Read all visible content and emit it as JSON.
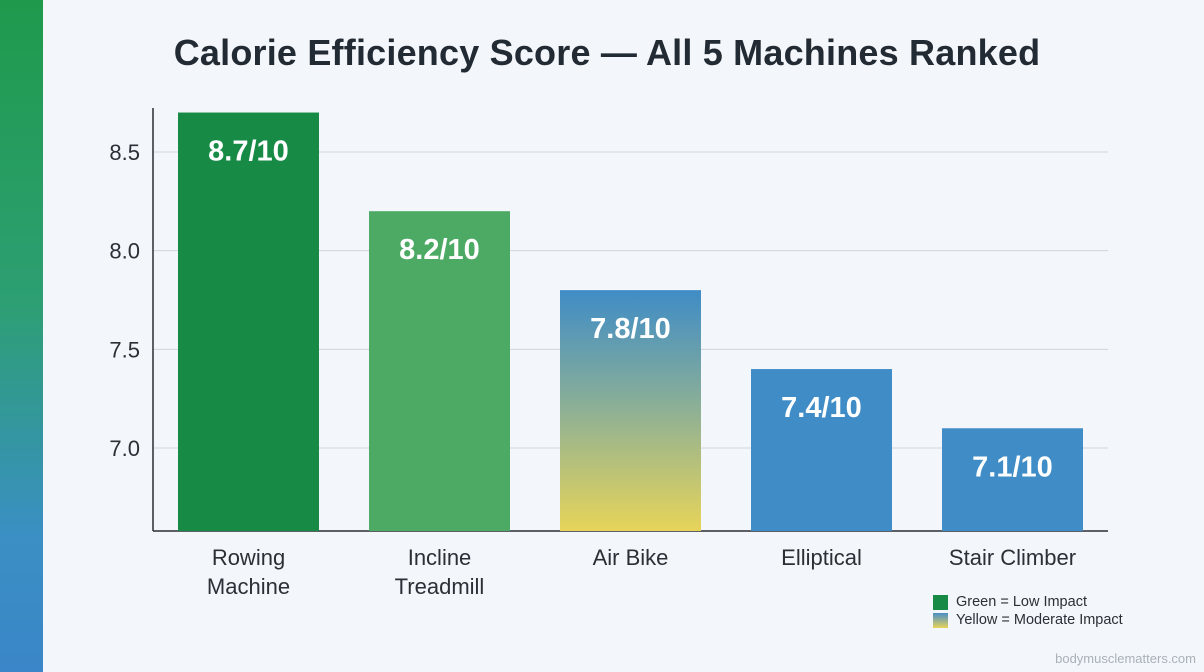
{
  "chart_data": {
    "type": "bar",
    "title": "Calorie Efficiency Score — All 5 Machines Ranked",
    "categories": [
      [
        "Rowing",
        "Machine"
      ],
      [
        "Incline",
        "Treadmill"
      ],
      [
        "Air Bike"
      ],
      [
        "Elliptical"
      ],
      [
        "Stair Climber"
      ]
    ],
    "values": [
      8.7,
      8.2,
      7.8,
      7.4,
      7.1
    ],
    "value_labels": [
      "8.7/10",
      "8.2/10",
      "7.8/10",
      "7.4/10",
      "7.1/10"
    ],
    "bar_styles": [
      "green-dark",
      "green-light",
      "blue-yellow",
      "blue",
      "blue"
    ],
    "ylim": [
      6.5,
      8.8
    ],
    "yticks": [
      7.0,
      7.5,
      8.0,
      8.5
    ],
    "ytick_labels": [
      "7.0",
      "7.5",
      "8.0",
      "8.5"
    ],
    "grid": true,
    "xlabel": "",
    "ylabel": "",
    "legend_position": "bottom-right"
  },
  "legend": {
    "items": [
      {
        "label": "Green = Low Impact",
        "color": "#178a46"
      },
      {
        "label": "Yellow = Moderate Impact",
        "color": "#e7d45a"
      }
    ]
  },
  "colors": {
    "green_dark": "#178a46",
    "green_light": "#4caa65",
    "blue": "#3f8cc6",
    "yellow": "#e7d45a"
  },
  "watermark": "bodymusclematters.com"
}
